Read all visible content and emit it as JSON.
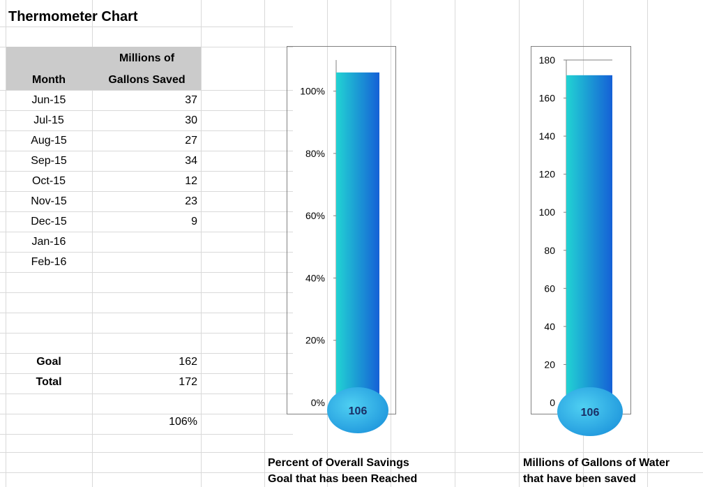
{
  "sheet": {
    "title": "Thermometer Chart",
    "header": {
      "month": "Month",
      "saved_line1": "Millions of",
      "saved_line2": "Gallons Saved"
    },
    "rows": [
      {
        "month": "Jun-15",
        "value": "37"
      },
      {
        "month": "Jul-15",
        "value": "30"
      },
      {
        "month": "Aug-15",
        "value": "27"
      },
      {
        "month": "Sep-15",
        "value": "34"
      },
      {
        "month": "Oct-15",
        "value": "12"
      },
      {
        "month": "Nov-15",
        "value": "23"
      },
      {
        "month": "Dec-15",
        "value": "9"
      },
      {
        "month": "Jan-16",
        "value": ""
      },
      {
        "month": "Feb-16",
        "value": ""
      }
    ],
    "goal_label": "Goal",
    "goal_value": "162",
    "total_label": "Total",
    "total_value": "172",
    "percent_value": "106%"
  },
  "chart_data": [
    {
      "type": "bar",
      "categories": [
        ""
      ],
      "values": [
        1.06
      ],
      "ylim": [
        0,
        1.1
      ],
      "yticks": [
        "0%",
        "20%",
        "40%",
        "60%",
        "80%",
        "100%"
      ],
      "bulb_label": "106",
      "caption_line1": "Percent of Overall Savings",
      "caption_line2": "Goal that has been Reached",
      "bar_color_start": "#22d3d3",
      "bar_color_end": "#1560d6"
    },
    {
      "type": "bar",
      "categories": [
        ""
      ],
      "values": [
        172
      ],
      "ylim": [
        0,
        180
      ],
      "yticks": [
        "0",
        "20",
        "40",
        "60",
        "80",
        "100",
        "120",
        "140",
        "160",
        "180"
      ],
      "bulb_label": "106",
      "caption_line1": "Millions of Gallons of Water",
      "caption_line2": "that have been saved",
      "bar_color_start": "#22d3d3",
      "bar_color_end": "#1560d6"
    }
  ]
}
